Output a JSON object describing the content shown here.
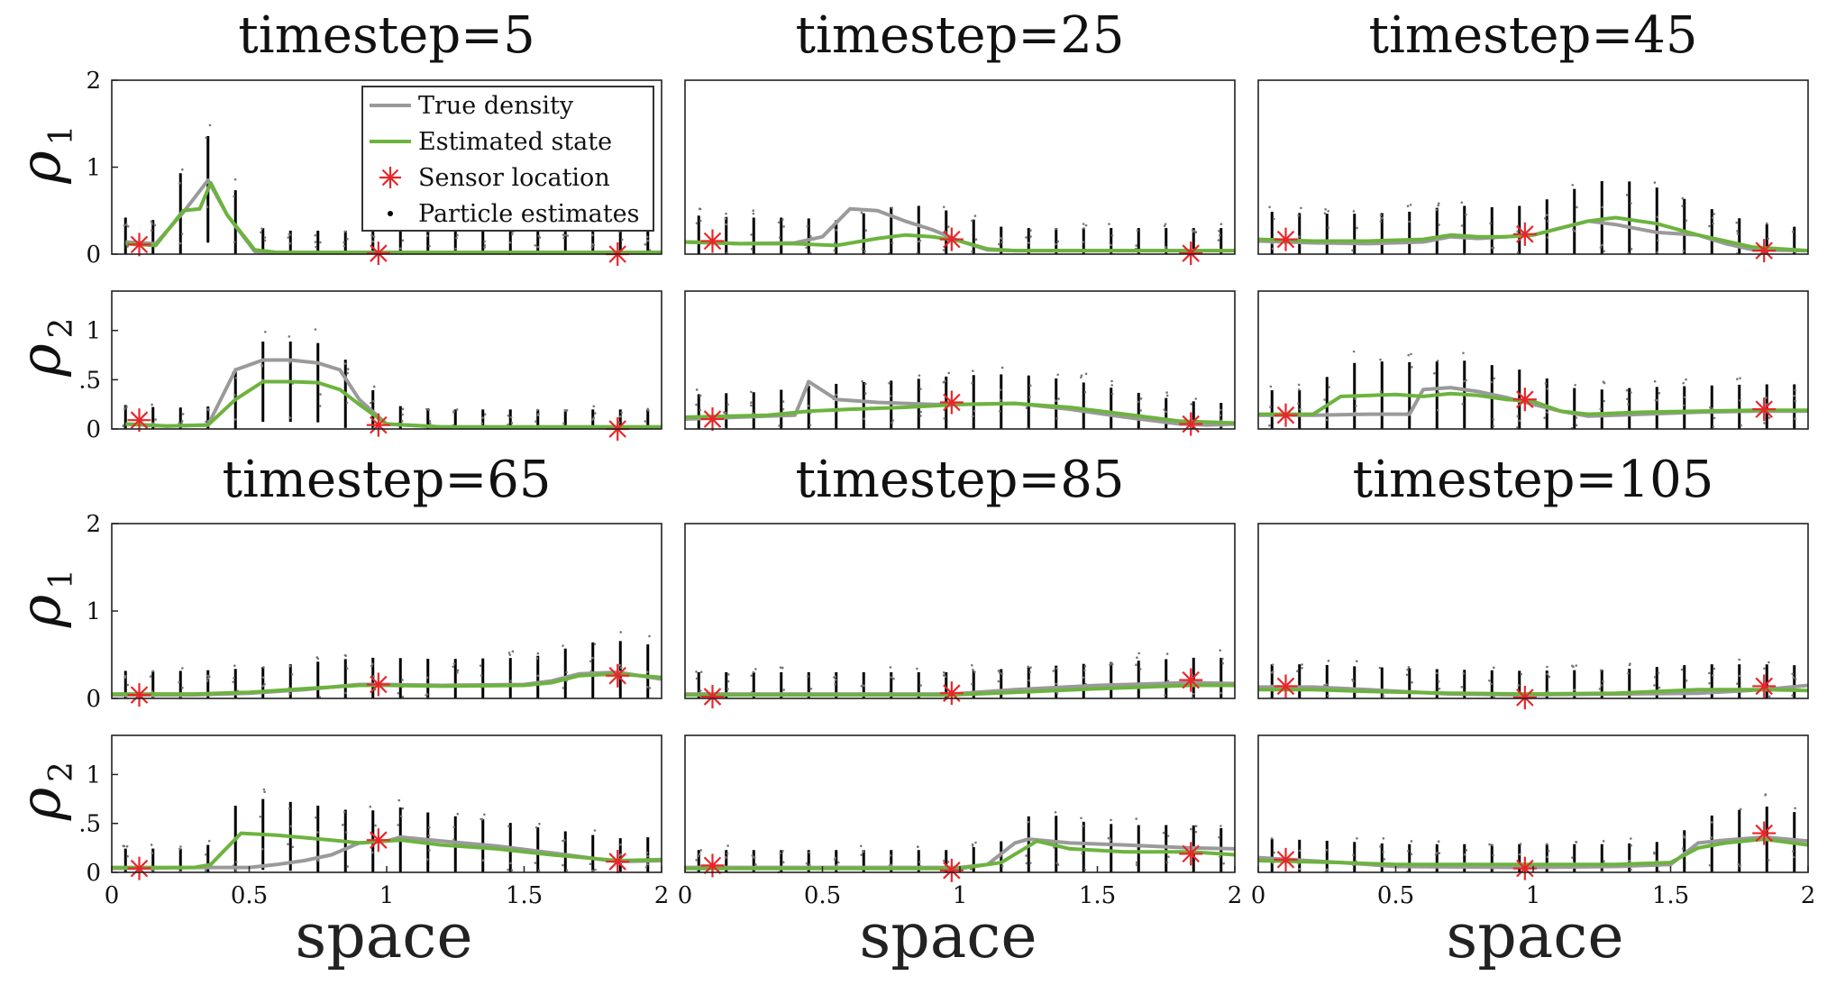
{
  "figure": {
    "xlabel": "space",
    "colors": {
      "true": "#9a9a9a",
      "est": "#6db33f",
      "sensor": "#e8262a",
      "particles": "#000000",
      "frame": "#222222"
    },
    "legend": {
      "entries": [
        {
          "key": "true",
          "label": "True density",
          "icon": "gray-line-icon"
        },
        {
          "key": "est",
          "label": "Estimated state",
          "icon": "green-line-icon"
        },
        {
          "key": "sensor",
          "label": "Sensor location",
          "icon": "red-asterisk-icon"
        },
        {
          "key": "particles",
          "label": "Particle estimates",
          "icon": "black-dot-icon"
        }
      ]
    },
    "rho_labels": {
      "rho1": {
        "sym": "ρ",
        "sub": "1"
      },
      "rho2": {
        "sym": "ρ",
        "sub": "2"
      }
    },
    "x_ticks": [
      "0",
      "0.5",
      "1",
      "1.5",
      "2"
    ],
    "rho1_ticks": [
      "0",
      "1",
      "2"
    ],
    "rho2_ticks": [
      "0",
      ".5",
      "1"
    ]
  },
  "chart_data": [
    {
      "type": "line",
      "title": "timestep=5",
      "xlabel": "space",
      "ylabel": "ρ1",
      "xlim": [
        0,
        2
      ],
      "ylim": [
        0,
        2
      ],
      "sensor_x": [
        0.1,
        0.97,
        1.84
      ],
      "sensor_y": [
        0.11,
        0.01,
        0.0
      ],
      "series": [
        {
          "name": "True density",
          "x": [
            0.05,
            0.16,
            0.26,
            0.35,
            0.42,
            0.52,
            0.6,
            0.7,
            0.8,
            0.9,
            1.0,
            1.2,
            1.4,
            1.6,
            1.8,
            2.0
          ],
          "y": [
            0.14,
            0.12,
            0.48,
            0.85,
            0.45,
            0.03,
            0.02,
            0.02,
            0.02,
            0.02,
            0.02,
            0.02,
            0.02,
            0.02,
            0.02,
            0.02
          ]
        },
        {
          "name": "Estimated state",
          "x": [
            0.05,
            0.16,
            0.26,
            0.32,
            0.36,
            0.42,
            0.52,
            0.6,
            0.7,
            0.8,
            0.9,
            1.0,
            1.2,
            1.4,
            1.6,
            1.8,
            2.0
          ],
          "y": [
            0.12,
            0.1,
            0.5,
            0.52,
            0.82,
            0.45,
            0.05,
            0.02,
            0.02,
            0.02,
            0.02,
            0.02,
            0.02,
            0.02,
            0.02,
            0.02,
            0.02
          ]
        }
      ]
    },
    {
      "type": "line",
      "title": "timestep=5",
      "xlabel": "space",
      "ylabel": "ρ2",
      "xlim": [
        0,
        2
      ],
      "ylim": [
        0,
        1.4
      ],
      "sensor_x": [
        0.1,
        0.97,
        1.84
      ],
      "sensor_y": [
        0.09,
        0.04,
        0.0
      ],
      "series": [
        {
          "name": "True density",
          "x": [
            0.05,
            0.2,
            0.35,
            0.45,
            0.55,
            0.65,
            0.75,
            0.83,
            0.9,
            1.0,
            1.2,
            1.4,
            1.6,
            1.8,
            2.0
          ],
          "y": [
            0.05,
            0.03,
            0.04,
            0.6,
            0.7,
            0.7,
            0.67,
            0.6,
            0.3,
            0.05,
            0.02,
            0.02,
            0.02,
            0.02,
            0.02
          ]
        },
        {
          "name": "Estimated state",
          "x": [
            0.05,
            0.2,
            0.35,
            0.45,
            0.55,
            0.65,
            0.75,
            0.83,
            0.9,
            1.0,
            1.2,
            1.4,
            1.6,
            1.8,
            2.0
          ],
          "y": [
            0.05,
            0.03,
            0.04,
            0.3,
            0.48,
            0.48,
            0.47,
            0.4,
            0.25,
            0.05,
            0.02,
            0.02,
            0.02,
            0.02,
            0.02
          ]
        }
      ]
    },
    {
      "type": "line",
      "title": "timestep=25",
      "xlabel": "space",
      "ylabel": "ρ1",
      "xlim": [
        0,
        2
      ],
      "ylim": [
        0,
        2
      ],
      "sensor_x": [
        0.1,
        0.97,
        1.84
      ],
      "sensor_y": [
        0.15,
        0.17,
        0.01
      ],
      "series": [
        {
          "name": "True density",
          "x": [
            0.0,
            0.2,
            0.4,
            0.5,
            0.6,
            0.7,
            0.8,
            0.9,
            1.0,
            1.1,
            1.2,
            1.5,
            1.8,
            2.0
          ],
          "y": [
            0.14,
            0.12,
            0.13,
            0.2,
            0.52,
            0.5,
            0.38,
            0.28,
            0.15,
            0.05,
            0.04,
            0.04,
            0.04,
            0.04
          ]
        },
        {
          "name": "Estimated state",
          "x": [
            0.0,
            0.2,
            0.4,
            0.55,
            0.7,
            0.8,
            0.9,
            1.0,
            1.1,
            1.2,
            1.5,
            1.8,
            2.0
          ],
          "y": [
            0.14,
            0.12,
            0.12,
            0.1,
            0.18,
            0.22,
            0.2,
            0.15,
            0.06,
            0.04,
            0.04,
            0.04,
            0.04
          ]
        }
      ]
    },
    {
      "type": "line",
      "title": "timestep=25",
      "xlabel": "space",
      "ylabel": "ρ2",
      "xlim": [
        0,
        2
      ],
      "ylim": [
        0,
        1.4
      ],
      "sensor_x": [
        0.1,
        0.97,
        1.84
      ],
      "sensor_y": [
        0.1,
        0.27,
        0.05
      ],
      "series": [
        {
          "name": "True density",
          "x": [
            0.0,
            0.3,
            0.4,
            0.45,
            0.55,
            0.7,
            0.9,
            1.0,
            1.2,
            1.4,
            1.6,
            1.8,
            1.9,
            2.0
          ],
          "y": [
            0.1,
            0.13,
            0.14,
            0.48,
            0.3,
            0.27,
            0.25,
            0.25,
            0.26,
            0.2,
            0.12,
            0.05,
            0.04,
            0.05
          ]
        },
        {
          "name": "Estimated state",
          "x": [
            0.0,
            0.3,
            0.45,
            0.6,
            0.8,
            1.0,
            1.2,
            1.4,
            1.6,
            1.8,
            2.0
          ],
          "y": [
            0.12,
            0.14,
            0.18,
            0.2,
            0.22,
            0.25,
            0.26,
            0.22,
            0.15,
            0.08,
            0.06
          ]
        }
      ]
    },
    {
      "type": "line",
      "title": "timestep=45",
      "xlabel": "space",
      "ylabel": "ρ1",
      "xlim": [
        0,
        2
      ],
      "ylim": [
        0,
        2
      ],
      "sensor_x": [
        0.1,
        0.97,
        1.84
      ],
      "sensor_y": [
        0.17,
        0.23,
        0.04
      ],
      "series": [
        {
          "name": "True density",
          "x": [
            0.0,
            0.2,
            0.4,
            0.6,
            0.7,
            0.8,
            0.9,
            1.0,
            1.1,
            1.2,
            1.3,
            1.45,
            1.6,
            1.7,
            1.8,
            2.0
          ],
          "y": [
            0.15,
            0.13,
            0.12,
            0.14,
            0.2,
            0.18,
            0.2,
            0.22,
            0.3,
            0.38,
            0.34,
            0.25,
            0.22,
            0.12,
            0.05,
            0.04
          ]
        },
        {
          "name": "Estimated state",
          "x": [
            0.0,
            0.2,
            0.4,
            0.6,
            0.7,
            0.8,
            0.9,
            1.0,
            1.1,
            1.2,
            1.3,
            1.45,
            1.6,
            1.7,
            1.8,
            2.0
          ],
          "y": [
            0.17,
            0.15,
            0.15,
            0.17,
            0.22,
            0.2,
            0.2,
            0.22,
            0.3,
            0.38,
            0.42,
            0.35,
            0.22,
            0.15,
            0.08,
            0.04
          ]
        }
      ]
    },
    {
      "type": "line",
      "title": "timestep=45",
      "xlabel": "space",
      "ylabel": "ρ2",
      "xlim": [
        0,
        2
      ],
      "ylim": [
        0,
        1.4
      ],
      "sensor_x": [
        0.1,
        0.97,
        1.84
      ],
      "sensor_y": [
        0.14,
        0.3,
        0.2
      ],
      "series": [
        {
          "name": "True density",
          "x": [
            0.0,
            0.2,
            0.4,
            0.55,
            0.6,
            0.7,
            0.8,
            0.9,
            1.0,
            1.1,
            1.2,
            1.4,
            1.6,
            1.8,
            2.0
          ],
          "y": [
            0.14,
            0.14,
            0.15,
            0.15,
            0.4,
            0.42,
            0.38,
            0.32,
            0.25,
            0.18,
            0.13,
            0.15,
            0.17,
            0.18,
            0.18
          ]
        },
        {
          "name": "Estimated state",
          "x": [
            0.0,
            0.2,
            0.3,
            0.5,
            0.6,
            0.7,
            0.8,
            0.9,
            1.0,
            1.1,
            1.2,
            1.4,
            1.6,
            1.8,
            2.0
          ],
          "y": [
            0.15,
            0.15,
            0.33,
            0.35,
            0.33,
            0.36,
            0.34,
            0.3,
            0.28,
            0.18,
            0.15,
            0.17,
            0.18,
            0.19,
            0.19
          ]
        }
      ]
    },
    {
      "type": "line",
      "title": "timestep=65",
      "xlabel": "space",
      "ylabel": "ρ1",
      "xlim": [
        0,
        2
      ],
      "ylim": [
        0,
        2
      ],
      "sensor_x": [
        0.1,
        0.97,
        1.84
      ],
      "sensor_y": [
        0.04,
        0.16,
        0.26
      ],
      "series": [
        {
          "name": "True density",
          "x": [
            0.0,
            0.3,
            0.5,
            0.7,
            0.9,
            1.0,
            1.2,
            1.5,
            1.6,
            1.7,
            1.84,
            2.0
          ],
          "y": [
            0.04,
            0.04,
            0.06,
            0.1,
            0.16,
            0.16,
            0.15,
            0.16,
            0.2,
            0.28,
            0.3,
            0.22
          ]
        },
        {
          "name": "Estimated state",
          "x": [
            0.0,
            0.3,
            0.5,
            0.7,
            0.9,
            1.0,
            1.2,
            1.5,
            1.6,
            1.7,
            1.84,
            2.0
          ],
          "y": [
            0.05,
            0.05,
            0.07,
            0.11,
            0.15,
            0.15,
            0.14,
            0.15,
            0.18,
            0.26,
            0.28,
            0.24
          ]
        }
      ]
    },
    {
      "type": "line",
      "title": "timestep=65",
      "xlabel": "space",
      "ylabel": "ρ2",
      "xlim": [
        0,
        2
      ],
      "ylim": [
        0,
        1.4
      ],
      "sensor_x": [
        0.1,
        0.97,
        1.84
      ],
      "sensor_y": [
        0.04,
        0.33,
        0.11
      ],
      "series": [
        {
          "name": "True density",
          "x": [
            0.0,
            0.3,
            0.5,
            0.6,
            0.7,
            0.8,
            0.9,
            1.0,
            1.05,
            1.2,
            1.4,
            1.6,
            1.84,
            2.0
          ],
          "y": [
            0.04,
            0.05,
            0.05,
            0.08,
            0.12,
            0.18,
            0.3,
            0.32,
            0.36,
            0.32,
            0.27,
            0.2,
            0.11,
            0.12
          ]
        },
        {
          "name": "Estimated state",
          "x": [
            0.0,
            0.3,
            0.36,
            0.47,
            0.6,
            0.8,
            0.9,
            1.0,
            1.05,
            1.2,
            1.4,
            1.6,
            1.84,
            2.0
          ],
          "y": [
            0.05,
            0.05,
            0.08,
            0.4,
            0.38,
            0.33,
            0.3,
            0.32,
            0.33,
            0.28,
            0.24,
            0.18,
            0.12,
            0.13
          ]
        }
      ]
    },
    {
      "type": "line",
      "title": "timestep=85",
      "xlabel": "space",
      "ylabel": "ρ1",
      "xlim": [
        0,
        2
      ],
      "ylim": [
        0,
        2
      ],
      "sensor_x": [
        0.1,
        0.97,
        1.84
      ],
      "sensor_y": [
        0.02,
        0.06,
        0.21
      ],
      "series": [
        {
          "name": "True density",
          "x": [
            0.0,
            0.3,
            0.6,
            0.97,
            1.2,
            1.5,
            1.84,
            2.0
          ],
          "y": [
            0.05,
            0.05,
            0.05,
            0.05,
            0.1,
            0.15,
            0.18,
            0.17
          ]
        },
        {
          "name": "Estimated state",
          "x": [
            0.0,
            0.3,
            0.6,
            0.97,
            1.2,
            1.5,
            1.84,
            2.0
          ],
          "y": [
            0.04,
            0.04,
            0.04,
            0.04,
            0.07,
            0.11,
            0.15,
            0.15
          ]
        }
      ]
    },
    {
      "type": "line",
      "title": "timestep=85",
      "xlabel": "space",
      "ylabel": "ρ2",
      "xlim": [
        0,
        2
      ],
      "ylim": [
        0,
        1.4
      ],
      "sensor_x": [
        0.1,
        0.97,
        1.84
      ],
      "sensor_y": [
        0.07,
        0.02,
        0.19
      ],
      "series": [
        {
          "name": "True density",
          "x": [
            0.0,
            0.4,
            0.8,
            1.0,
            1.1,
            1.2,
            1.25,
            1.4,
            1.6,
            1.84,
            2.0
          ],
          "y": [
            0.05,
            0.05,
            0.05,
            0.05,
            0.08,
            0.3,
            0.34,
            0.3,
            0.28,
            0.25,
            0.24
          ]
        },
        {
          "name": "Estimated state",
          "x": [
            0.0,
            0.4,
            0.8,
            1.0,
            1.15,
            1.28,
            1.4,
            1.6,
            1.84,
            2.0
          ],
          "y": [
            0.04,
            0.04,
            0.04,
            0.04,
            0.1,
            0.32,
            0.24,
            0.21,
            0.21,
            0.18
          ]
        }
      ]
    },
    {
      "type": "line",
      "title": "timestep=105",
      "xlabel": "space",
      "ylabel": "ρ1",
      "xlim": [
        0,
        2
      ],
      "ylim": [
        0,
        2
      ],
      "sensor_x": [
        0.1,
        0.97,
        1.84
      ],
      "sensor_y": [
        0.14,
        0.01,
        0.14
      ],
      "series": [
        {
          "name": "True density",
          "x": [
            0.0,
            0.2,
            0.4,
            0.7,
            0.97,
            1.3,
            1.6,
            1.84,
            2.0
          ],
          "y": [
            0.13,
            0.13,
            0.1,
            0.05,
            0.04,
            0.05,
            0.06,
            0.1,
            0.15
          ]
        },
        {
          "name": "Estimated state",
          "x": [
            0.0,
            0.2,
            0.4,
            0.7,
            0.97,
            1.3,
            1.6,
            1.84,
            2.0
          ],
          "y": [
            0.1,
            0.1,
            0.08,
            0.06,
            0.05,
            0.06,
            0.1,
            0.1,
            0.09
          ]
        }
      ]
    },
    {
      "type": "line",
      "title": "timestep=105",
      "xlabel": "space",
      "ylabel": "ρ2",
      "xlim": [
        0,
        2
      ],
      "ylim": [
        0,
        1.4
      ],
      "sensor_x": [
        0.1,
        0.97,
        1.84
      ],
      "sensor_y": [
        0.13,
        0.04,
        0.4
      ],
      "series": [
        {
          "name": "True density",
          "x": [
            0.0,
            0.3,
            0.5,
            0.97,
            1.3,
            1.5,
            1.6,
            1.7,
            1.84,
            2.0
          ],
          "y": [
            0.15,
            0.1,
            0.06,
            0.05,
            0.06,
            0.08,
            0.3,
            0.33,
            0.36,
            0.32
          ]
        },
        {
          "name": "Estimated state",
          "x": [
            0.0,
            0.3,
            0.5,
            0.97,
            1.3,
            1.5,
            1.6,
            1.7,
            1.84,
            2.0
          ],
          "y": [
            0.12,
            0.1,
            0.08,
            0.08,
            0.08,
            0.1,
            0.25,
            0.3,
            0.34,
            0.28
          ]
        }
      ]
    }
  ]
}
